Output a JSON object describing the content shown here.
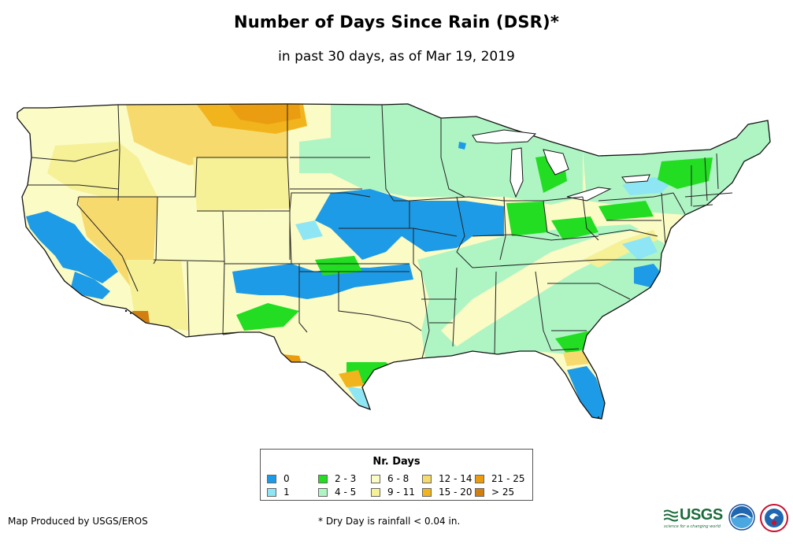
{
  "title": "Number of Days Since Rain (DSR)*",
  "subtitle": "in past 30 days, as of Mar 19, 2019",
  "legend": {
    "title": "Nr. Days",
    "items": [
      {
        "label": "0",
        "color": "#1e9be6"
      },
      {
        "label": "1",
        "color": "#8ee6f4"
      },
      {
        "label": "2 - 3",
        "color": "#22dd22"
      },
      {
        "label": "4 - 5",
        "color": "#aff5c4"
      },
      {
        "label": "6 - 8",
        "color": "#fbfbc5"
      },
      {
        "label": "9 - 11",
        "color": "#f6f096"
      },
      {
        "label": "12 - 14",
        "color": "#f7da6e"
      },
      {
        "label": "15 - 20",
        "color": "#f2b41d"
      },
      {
        "label": "21 - 25",
        "color": "#ea9d10"
      },
      {
        "label": "> 25",
        "color": "#d07f10"
      }
    ]
  },
  "credit": "Map Produced by USGS/EROS",
  "footnote": "* Dry Day is rainfall < 0.04 in.",
  "logos": {
    "usgs": "USGS",
    "usgs_tagline": "science for a changing world",
    "noaa": "noaa",
    "nws": "NWS"
  },
  "map_region": "Contiguous United States",
  "colors": {
    "state_border": "#222222",
    "coast": "#111111",
    "lakes": "#ffffff"
  }
}
